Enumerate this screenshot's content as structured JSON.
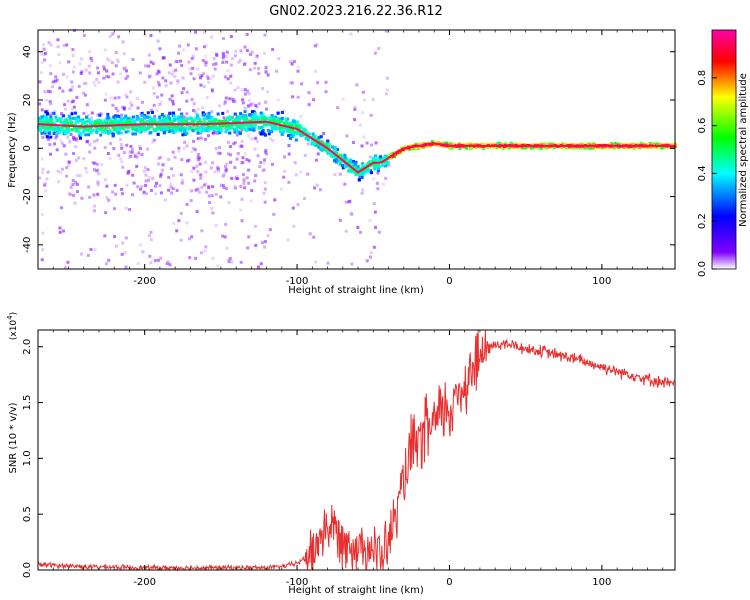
{
  "figure_title": "GN02.2023.216.22.36.R12",
  "chart_data": [
    {
      "type": "heatmap",
      "xlabel": "Height of straight line (km)",
      "ylabel": "Frequency (Hz)",
      "xlim": [
        -270,
        148
      ],
      "ylim": [
        -50,
        49
      ],
      "x_ticks": [
        -200,
        -100,
        0,
        100
      ],
      "x_tick_labels": [
        "-200",
        "-100",
        "0",
        "100"
      ],
      "y_ticks": [
        -40,
        -20,
        0,
        20,
        40
      ],
      "y_tick_labels": [
        "-40",
        "-20",
        "0",
        "20",
        "40"
      ],
      "ridge_frequency": {
        "x": [
          -270,
          -240,
          -200,
          -160,
          -120,
          -100,
          -90,
          -80,
          -70,
          -60,
          -50,
          -45,
          -40,
          -35,
          -30,
          -20,
          -10,
          0,
          10,
          20,
          50,
          100,
          148
        ],
        "y": [
          10,
          9,
          10,
          10,
          11,
          8,
          4,
          0,
          -5,
          -10,
          -6,
          -6,
          -4,
          -2,
          0,
          1,
          2,
          1,
          1,
          1,
          1,
          1,
          1
        ]
      },
      "colorbar": {
        "label": "Normalized spectral amplitude",
        "range": [
          0.0,
          1.0
        ],
        "ticks": [
          0.0,
          0.2,
          0.4,
          0.6,
          0.8
        ],
        "tick_labels": [
          "0.0",
          "0.2",
          "0.4",
          "0.6",
          "0.8"
        ],
        "colormap": [
          "#ffffff",
          "#8000ff",
          "#0000ff",
          "#00ffff",
          "#00ff00",
          "#ffff00",
          "#ff0000",
          "#ff00aa"
        ]
      },
      "grid": false
    },
    {
      "type": "line",
      "xlabel": "Height of straight line (km)",
      "ylabel": "SNR (10 * v/v)",
      "y_exponent_label": "(x10",
      "y_exponent_power": "4",
      "y_exponent_close": ")",
      "xlim": [
        -270,
        148
      ],
      "ylim": [
        0,
        2.15
      ],
      "x_ticks": [
        -200,
        -100,
        0,
        100
      ],
      "x_tick_labels": [
        "-200",
        "-100",
        "0",
        "100"
      ],
      "y_ticks": [
        0.0,
        0.5,
        1.0,
        1.5,
        2.0
      ],
      "y_tick_labels": [
        "0.0",
        "0.5",
        "1.0",
        "1.5",
        "2.0"
      ],
      "line_color": "#e83030",
      "x": [
        -270,
        -240,
        -200,
        -160,
        -120,
        -110,
        -100,
        -90,
        -85,
        -80,
        -75,
        -70,
        -65,
        -60,
        -55,
        -50,
        -45,
        -40,
        -35,
        -30,
        -25,
        -20,
        -15,
        -10,
        -5,
        0,
        5,
        10,
        15,
        20,
        25,
        30,
        40,
        50,
        60,
        70,
        80,
        90,
        100,
        110,
        120,
        130,
        140,
        148
      ],
      "y": [
        0.05,
        0.03,
        0.02,
        0.02,
        0.02,
        0.03,
        0.06,
        0.15,
        0.3,
        0.4,
        0.35,
        0.28,
        0.25,
        0.2,
        0.24,
        0.18,
        0.12,
        0.25,
        0.5,
        0.8,
        1.05,
        1.15,
        1.25,
        1.3,
        1.4,
        1.45,
        1.55,
        1.7,
        1.8,
        1.9,
        1.98,
        2.02,
        2.02,
        1.98,
        1.96,
        1.93,
        1.9,
        1.86,
        1.82,
        1.78,
        1.75,
        1.71,
        1.68,
        1.66
      ],
      "grid": false
    }
  ]
}
